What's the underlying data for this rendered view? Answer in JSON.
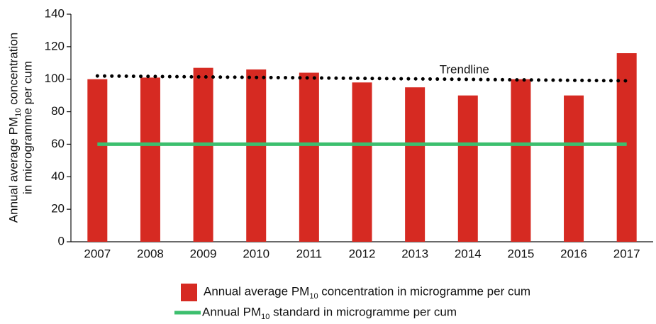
{
  "chart_data": {
    "type": "bar",
    "y_label": [
      "Annual average PM10 concentration",
      "in microgramme per cum"
    ],
    "categories": [
      "2007",
      "2008",
      "2009",
      "2010",
      "2011",
      "2012",
      "2013",
      "2014",
      "2015",
      "2016",
      "2017"
    ],
    "series": [
      {
        "name": "Annual average PM10 concentration in microgramme per cum",
        "type": "bar",
        "color": "#d62a22",
        "values": [
          100,
          101,
          107,
          106,
          104,
          98,
          95,
          90,
          100,
          90,
          116
        ]
      },
      {
        "name": "Annual PM10 standard in microgramme per cum",
        "type": "line",
        "color": "#3cbf6e",
        "values": [
          60,
          60,
          60,
          60,
          60,
          60,
          60,
          60,
          60,
          60,
          60
        ]
      },
      {
        "name": "Trendline",
        "type": "dotted",
        "color": "#000000",
        "values": [
          102,
          101.7,
          101.4,
          101.1,
          100.8,
          100.5,
          100.2,
          99.9,
          99.6,
          99.3,
          99
        ]
      }
    ],
    "ylim": [
      0,
      140
    ],
    "yticks": [
      0,
      20,
      40,
      60,
      80,
      100,
      120,
      140
    ],
    "grid": false
  }
}
